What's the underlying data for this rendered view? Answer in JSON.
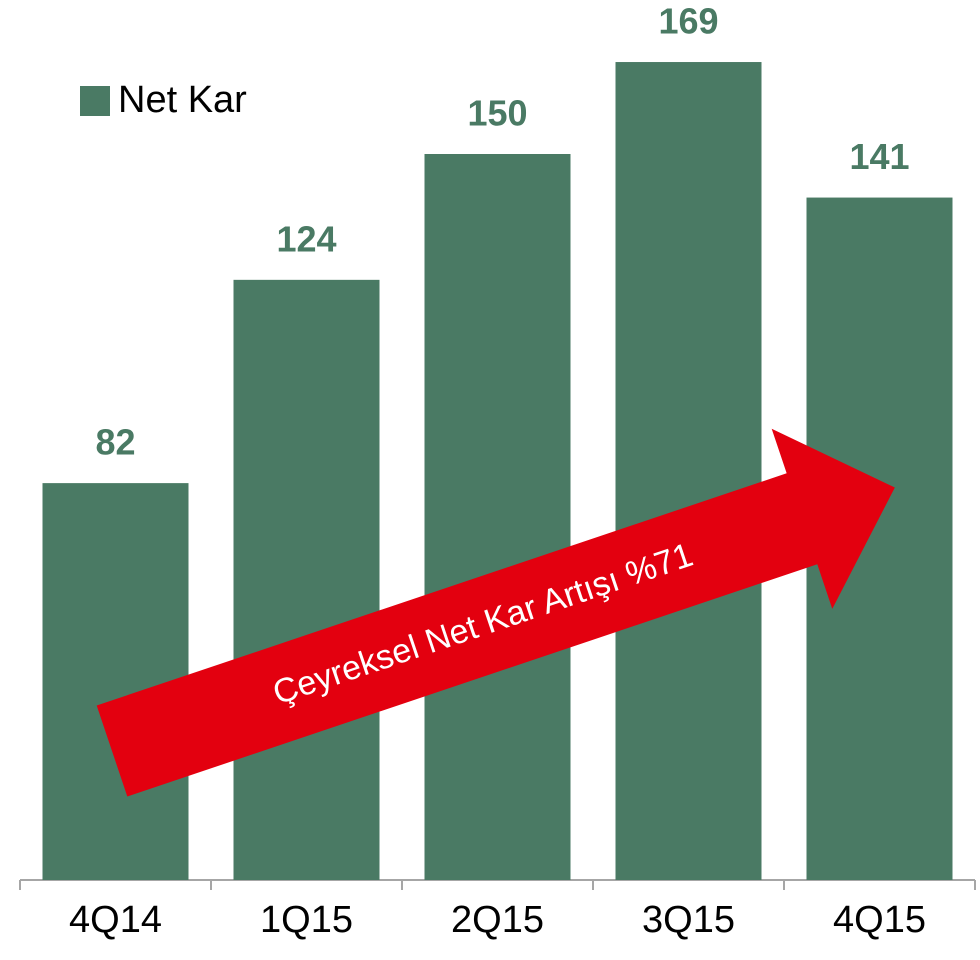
{
  "chart_data": {
    "type": "bar",
    "categories": [
      "4Q14",
      "1Q15",
      "2Q15",
      "3Q15",
      "4Q15"
    ],
    "series": [
      {
        "name": "Net Kar",
        "color": "#4a7a64",
        "values": [
          82,
          124,
          150,
          169,
          141
        ]
      }
    ],
    "ylim": [
      0,
      180
    ],
    "annotation": "Çeyreksel Net Kar Artışı  %71",
    "annotation_color": "#e3000f",
    "legend": "top-left"
  }
}
